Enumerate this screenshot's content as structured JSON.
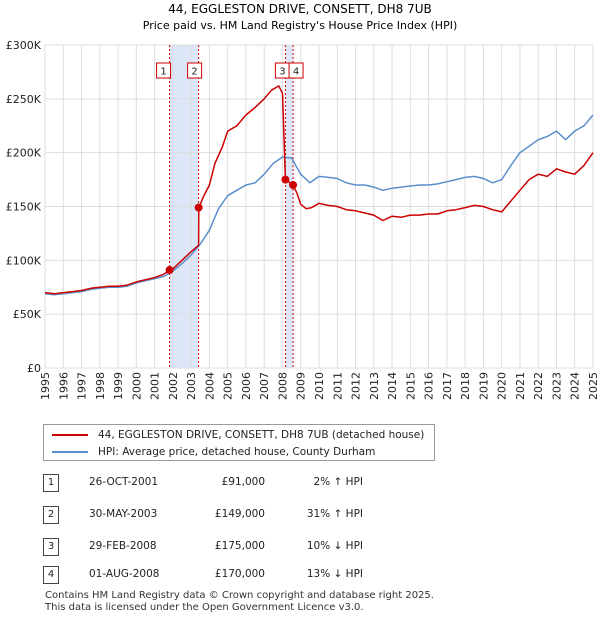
{
  "chart_data": {
    "type": "line",
    "title": "44, EGGLESTON DRIVE, CONSETT, DH8 7UB",
    "subtitle": "Price paid vs. HM Land Registry's House Price Index (HPI)",
    "xlabel": "",
    "ylabel": "",
    "xlim": [
      1995,
      2025
    ],
    "ylim": [
      0,
      300000
    ],
    "x_ticks": [
      "1995",
      "1996",
      "1997",
      "1998",
      "1999",
      "2000",
      "2001",
      "2002",
      "2003",
      "2004",
      "2005",
      "2006",
      "2007",
      "2008",
      "2009",
      "2010",
      "2011",
      "2012",
      "2013",
      "2014",
      "2015",
      "2016",
      "2017",
      "2018",
      "2019",
      "2020",
      "2021",
      "2022",
      "2023",
      "2024",
      "2025"
    ],
    "y_ticks": [
      {
        "value": 0,
        "label": "£0"
      },
      {
        "value": 50000,
        "label": "£50K"
      },
      {
        "value": 100000,
        "label": "£100K"
      },
      {
        "value": 150000,
        "label": "£150K"
      },
      {
        "value": 200000,
        "label": "£200K"
      },
      {
        "value": 250000,
        "label": "£250K"
      },
      {
        "value": 300000,
        "label": "£300K"
      }
    ],
    "grid": true,
    "series": [
      {
        "name": "44, EGGLESTON DRIVE, CONSETT, DH8 7UB (detached house)",
        "color": "#cc0000",
        "x": [
          1995.0,
          1995.5,
          1996.0,
          1996.5,
          1997.0,
          1997.5,
          1998.0,
          1998.5,
          1999.0,
          1999.5,
          2000.0,
          2000.5,
          2001.0,
          2001.5,
          2001.82,
          2002.0,
          2002.5,
          2003.0,
          2003.41,
          2003.42,
          2003.7,
          2004.0,
          2004.3,
          2004.7,
          2005.0,
          2005.5,
          2006.0,
          2006.5,
          2007.0,
          2007.4,
          2007.8,
          2008.0,
          2008.16,
          2008.17,
          2008.4,
          2008.58,
          2008.8,
          2009.0,
          2009.3,
          2009.6,
          2010.0,
          2010.5,
          2011.0,
          2011.5,
          2012.0,
          2012.5,
          2013.0,
          2013.5,
          2014.0,
          2014.5,
          2015.0,
          2015.5,
          2016.0,
          2016.5,
          2017.0,
          2017.5,
          2018.0,
          2018.5,
          2019.0,
          2019.5,
          2020.0,
          2020.5,
          2021.0,
          2021.5,
          2022.0,
          2022.5,
          2023.0,
          2023.5,
          2024.0,
          2024.5,
          2025.0
        ],
        "values": [
          70000,
          69000,
          70000,
          71000,
          72000,
          74000,
          75000,
          76000,
          76000,
          77000,
          80000,
          82000,
          84000,
          87000,
          91000,
          92000,
          100000,
          108000,
          114000,
          149000,
          160000,
          170000,
          190000,
          205000,
          220000,
          225000,
          235000,
          242000,
          250000,
          258000,
          262000,
          255000,
          175000,
          175000,
          172000,
          170000,
          162000,
          152000,
          148000,
          149000,
          153000,
          151000,
          150000,
          147000,
          146000,
          144000,
          142000,
          137000,
          141000,
          140000,
          142000,
          142000,
          143000,
          143000,
          146000,
          147000,
          149000,
          151000,
          150000,
          147000,
          145000,
          155000,
          165000,
          175000,
          180000,
          178000,
          185000,
          182000,
          180000,
          188000,
          200000
        ]
      },
      {
        "name": "HPI: Average price, detached house, County Durham",
        "color": "#5b8fcc",
        "x": [
          1995.0,
          1995.5,
          1996.0,
          1996.5,
          1997.0,
          1997.5,
          1998.0,
          1998.5,
          1999.0,
          1999.5,
          2000.0,
          2000.5,
          2001.0,
          2001.5,
          2002.0,
          2002.5,
          2003.0,
          2003.5,
          2004.0,
          2004.5,
          2005.0,
          2005.5,
          2006.0,
          2006.5,
          2007.0,
          2007.5,
          2008.0,
          2008.5,
          2009.0,
          2009.5,
          2010.0,
          2010.5,
          2011.0,
          2011.5,
          2012.0,
          2012.5,
          2013.0,
          2013.5,
          2014.0,
          2014.5,
          2015.0,
          2015.5,
          2016.0,
          2016.5,
          2017.0,
          2017.5,
          2018.0,
          2018.5,
          2019.0,
          2019.5,
          2020.0,
          2020.5,
          2021.0,
          2021.5,
          2022.0,
          2022.5,
          2023.0,
          2023.5,
          2024.0,
          2024.5,
          2025.0
        ],
        "values": [
          69000,
          68000,
          69000,
          70000,
          71000,
          73000,
          74000,
          75000,
          75000,
          76000,
          79000,
          81000,
          83000,
          85000,
          90000,
          97000,
          105000,
          115000,
          128000,
          148000,
          160000,
          165000,
          170000,
          172000,
          180000,
          190000,
          196000,
          195000,
          180000,
          172000,
          178000,
          177000,
          176000,
          172000,
          170000,
          170000,
          168000,
          165000,
          167000,
          168000,
          169000,
          170000,
          170000,
          171000,
          173000,
          175000,
          177000,
          178000,
          176000,
          172000,
          175000,
          188000,
          200000,
          206000,
          212000,
          215000,
          220000,
          212000,
          220000,
          225000,
          235000
        ]
      }
    ],
    "transactions": [
      {
        "label": "1",
        "x": 2001.82,
        "value": 91000,
        "date": "26-OCT-2001",
        "price": "£91,000",
        "hpi": "2% ↑ HPI"
      },
      {
        "label": "2",
        "x": 2003.41,
        "value": 149000,
        "date": "30-MAY-2003",
        "price": "£149,000",
        "hpi": "31% ↑ HPI"
      },
      {
        "label": "3",
        "x": 2008.16,
        "value": 175000,
        "date": "29-FEB-2008",
        "price": "£175,000",
        "hpi": "10% ↓ HPI"
      },
      {
        "label": "4",
        "x": 2008.58,
        "value": 170000,
        "date": "01-AUG-2008",
        "price": "£170,000",
        "hpi": "13% ↓ HPI"
      }
    ],
    "shaded_ranges": [
      [
        2001.82,
        2003.41
      ],
      [
        2008.16,
        2008.58
      ]
    ]
  },
  "colors": {
    "property": "#cc0000",
    "hpi": "#5b8fcc",
    "shade": "#dde6f7",
    "grid": "#dddddd"
  },
  "footer": {
    "line1": "Contains HM Land Registry data © Crown copyright and database right 2025.",
    "line2": "This data is licensed under the Open Government Licence v3.0."
  }
}
